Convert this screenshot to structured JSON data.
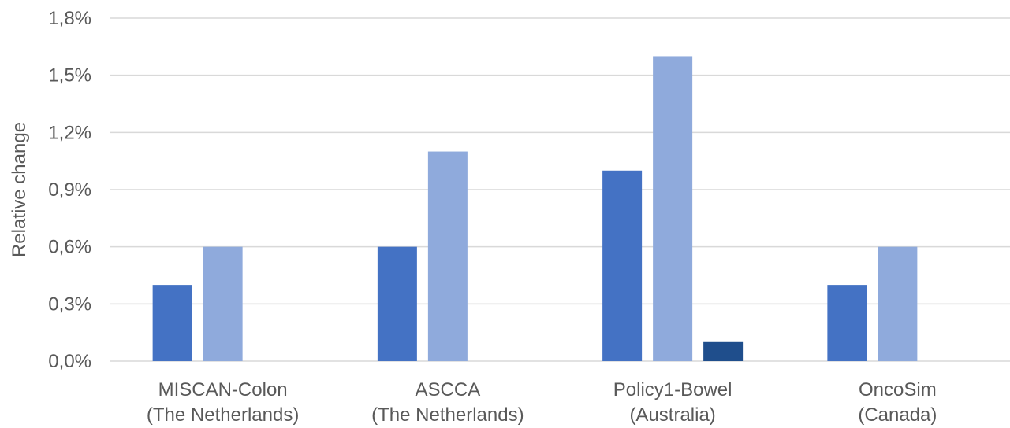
{
  "chart_data": {
    "type": "bar",
    "title": "",
    "xlabel": "",
    "ylabel": "Relative change",
    "ylim": [
      0,
      1.8
    ],
    "yticks": [
      0,
      0.3,
      0.6,
      0.9,
      1.2,
      1.5,
      1.8
    ],
    "ytick_labels": [
      "0,0%",
      "0,3%",
      "0,6%",
      "0,9%",
      "1,2%",
      "1,5%",
      "1,8%"
    ],
    "categories": [
      [
        "MISCAN-Colon",
        "(The Netherlands)"
      ],
      [
        "ASCCA",
        "(The Netherlands)"
      ],
      [
        "Policy1-Bowel",
        "(Australia)"
      ],
      [
        "OncoSim",
        "(Canada)"
      ]
    ],
    "series": [
      {
        "color": "#4472c4",
        "values": [
          0.4,
          0.6,
          1.0,
          0.4
        ]
      },
      {
        "color": "#8faadc",
        "values": [
          0.6,
          1.1,
          1.6,
          0.6
        ]
      },
      {
        "color": "#1f4e8c",
        "values": [
          0,
          0,
          0.1,
          0
        ]
      }
    ],
    "grid": true,
    "legend": "none"
  }
}
